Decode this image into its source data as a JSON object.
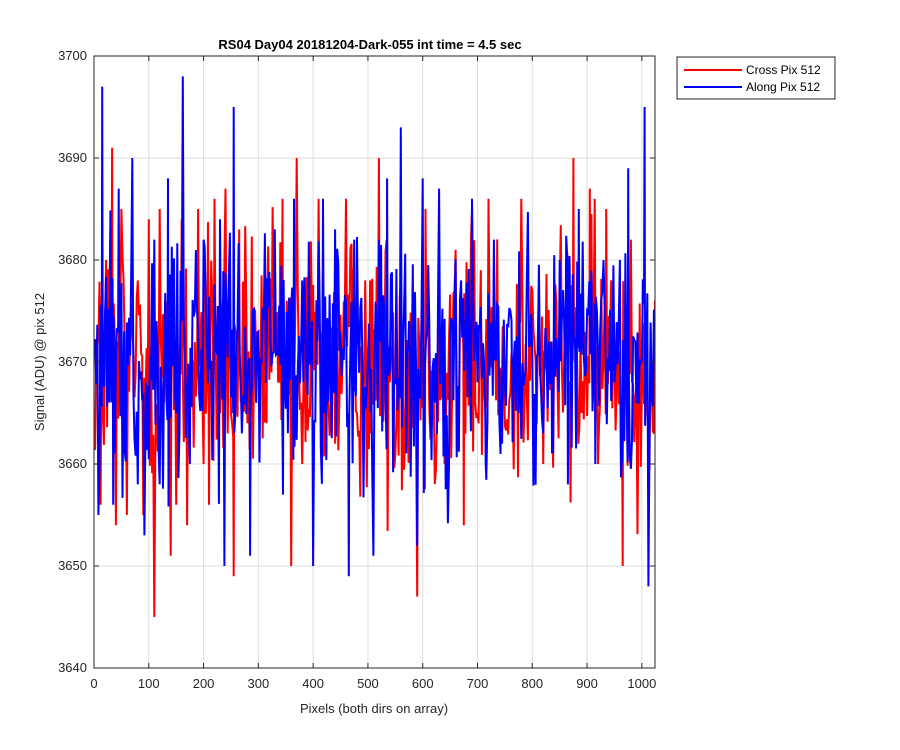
{
  "chart_data": {
    "type": "line",
    "title": "RS04 Day04 20181204-Dark-055 int time = 4.5 sec",
    "xlabel": "Pixels (both dirs on array)",
    "ylabel": "Signal (ADU) @ pix 512",
    "xlim": [
      0,
      1024
    ],
    "ylim": [
      3640,
      3700
    ],
    "xticks": [
      0,
      100,
      200,
      300,
      400,
      500,
      600,
      700,
      800,
      900,
      1000
    ],
    "yticks": [
      3640,
      3650,
      3660,
      3670,
      3680,
      3690,
      3700
    ],
    "grid": true,
    "legend_position": "outside-top-right",
    "series": [
      {
        "name": "Cross Pix 512",
        "color": "#ff0000",
        "mean": 3670,
        "points": [
          [
            0,
            3664
          ],
          [
            12,
            3656
          ],
          [
            22,
            3680
          ],
          [
            30,
            3683
          ],
          [
            33,
            3691
          ],
          [
            40,
            3654
          ],
          [
            50,
            3685
          ],
          [
            60,
            3655
          ],
          [
            70,
            3673
          ],
          [
            80,
            3678
          ],
          [
            90,
            3655
          ],
          [
            100,
            3684
          ],
          [
            110,
            3645
          ],
          [
            120,
            3685
          ],
          [
            130,
            3676
          ],
          [
            140,
            3651
          ],
          [
            150,
            3656
          ],
          [
            160,
            3684
          ],
          [
            170,
            3654
          ],
          [
            180,
            3670
          ],
          [
            190,
            3685
          ],
          [
            200,
            3660
          ],
          [
            210,
            3656
          ],
          [
            220,
            3686
          ],
          [
            230,
            3665
          ],
          [
            240,
            3687
          ],
          [
            250,
            3665
          ],
          [
            255,
            3649
          ],
          [
            265,
            3683
          ],
          [
            280,
            3664
          ],
          [
            300,
            3672
          ],
          [
            315,
            3664
          ],
          [
            330,
            3680
          ],
          [
            345,
            3670
          ],
          [
            360,
            3650
          ],
          [
            370,
            3690
          ],
          [
            380,
            3660
          ],
          [
            395,
            3668
          ],
          [
            410,
            3686
          ],
          [
            425,
            3672
          ],
          [
            440,
            3662
          ],
          [
            460,
            3686
          ],
          [
            480,
            3665
          ],
          [
            495,
            3678
          ],
          [
            505,
            3663
          ],
          [
            520,
            3690
          ],
          [
            540,
            3668
          ],
          [
            560,
            3678
          ],
          [
            575,
            3665
          ],
          [
            590,
            3647
          ],
          [
            605,
            3685
          ],
          [
            620,
            3667
          ],
          [
            640,
            3660
          ],
          [
            660,
            3681
          ],
          [
            675,
            3654
          ],
          [
            690,
            3685
          ],
          [
            700,
            3665
          ],
          [
            720,
            3686
          ],
          [
            740,
            3668
          ],
          [
            760,
            3667
          ],
          [
            780,
            3686
          ],
          [
            800,
            3677
          ],
          [
            820,
            3660
          ],
          [
            840,
            3672
          ],
          [
            860,
            3675
          ],
          [
            875,
            3690
          ],
          [
            890,
            3665
          ],
          [
            905,
            3687
          ],
          [
            920,
            3660
          ],
          [
            935,
            3685
          ],
          [
            950,
            3670
          ],
          [
            965,
            3650
          ],
          [
            980,
            3682
          ],
          [
            995,
            3665
          ],
          [
            1010,
            3665
          ],
          [
            1024,
            3676
          ]
        ]
      },
      {
        "name": "Along Pix 512",
        "color": "#0000ff",
        "mean": 3670,
        "points": [
          [
            8,
            3655
          ],
          [
            15,
            3697
          ],
          [
            25,
            3670
          ],
          [
            35,
            3656
          ],
          [
            45,
            3687
          ],
          [
            55,
            3673
          ],
          [
            70,
            3690
          ],
          [
            80,
            3658
          ],
          [
            95,
            3668
          ],
          [
            110,
            3682
          ],
          [
            120,
            3658
          ],
          [
            135,
            3688
          ],
          [
            150,
            3665
          ],
          [
            162,
            3698
          ],
          [
            175,
            3660
          ],
          [
            190,
            3673
          ],
          [
            200,
            3682
          ],
          [
            215,
            3665
          ],
          [
            230,
            3684
          ],
          [
            238,
            3650
          ],
          [
            255,
            3695
          ],
          [
            270,
            3663
          ],
          [
            285,
            3651
          ],
          [
            300,
            3673
          ],
          [
            315,
            3670
          ],
          [
            330,
            3683
          ],
          [
            345,
            3657
          ],
          [
            365,
            3686
          ],
          [
            380,
            3678
          ],
          [
            400,
            3650
          ],
          [
            420,
            3665
          ],
          [
            440,
            3683
          ],
          [
            450,
            3673
          ],
          [
            465,
            3649
          ],
          [
            475,
            3682
          ],
          [
            490,
            3670
          ],
          [
            510,
            3651
          ],
          [
            520,
            3682
          ],
          [
            535,
            3688
          ],
          [
            545,
            3668
          ],
          [
            560,
            3693
          ],
          [
            575,
            3674
          ],
          [
            590,
            3652
          ],
          [
            600,
            3688
          ],
          [
            615,
            3665
          ],
          [
            630,
            3687
          ],
          [
            650,
            3673
          ],
          [
            670,
            3678
          ],
          [
            690,
            3686
          ],
          [
            700,
            3668
          ],
          [
            715,
            3660
          ],
          [
            730,
            3682
          ],
          [
            745,
            3662
          ],
          [
            760,
            3675
          ],
          [
            775,
            3665
          ],
          [
            790,
            3678
          ],
          [
            805,
            3665
          ],
          [
            820,
            3663
          ],
          [
            835,
            3672
          ],
          [
            850,
            3680
          ],
          [
            865,
            3658
          ],
          [
            885,
            3685
          ],
          [
            900,
            3675
          ],
          [
            915,
            3660
          ],
          [
            930,
            3680
          ],
          [
            950,
            3668
          ],
          [
            960,
            3680
          ],
          [
            975,
            3689
          ],
          [
            990,
            3666
          ],
          [
            1005,
            3695
          ],
          [
            1012,
            3648
          ],
          [
            1024,
            3670
          ]
        ]
      }
    ]
  }
}
